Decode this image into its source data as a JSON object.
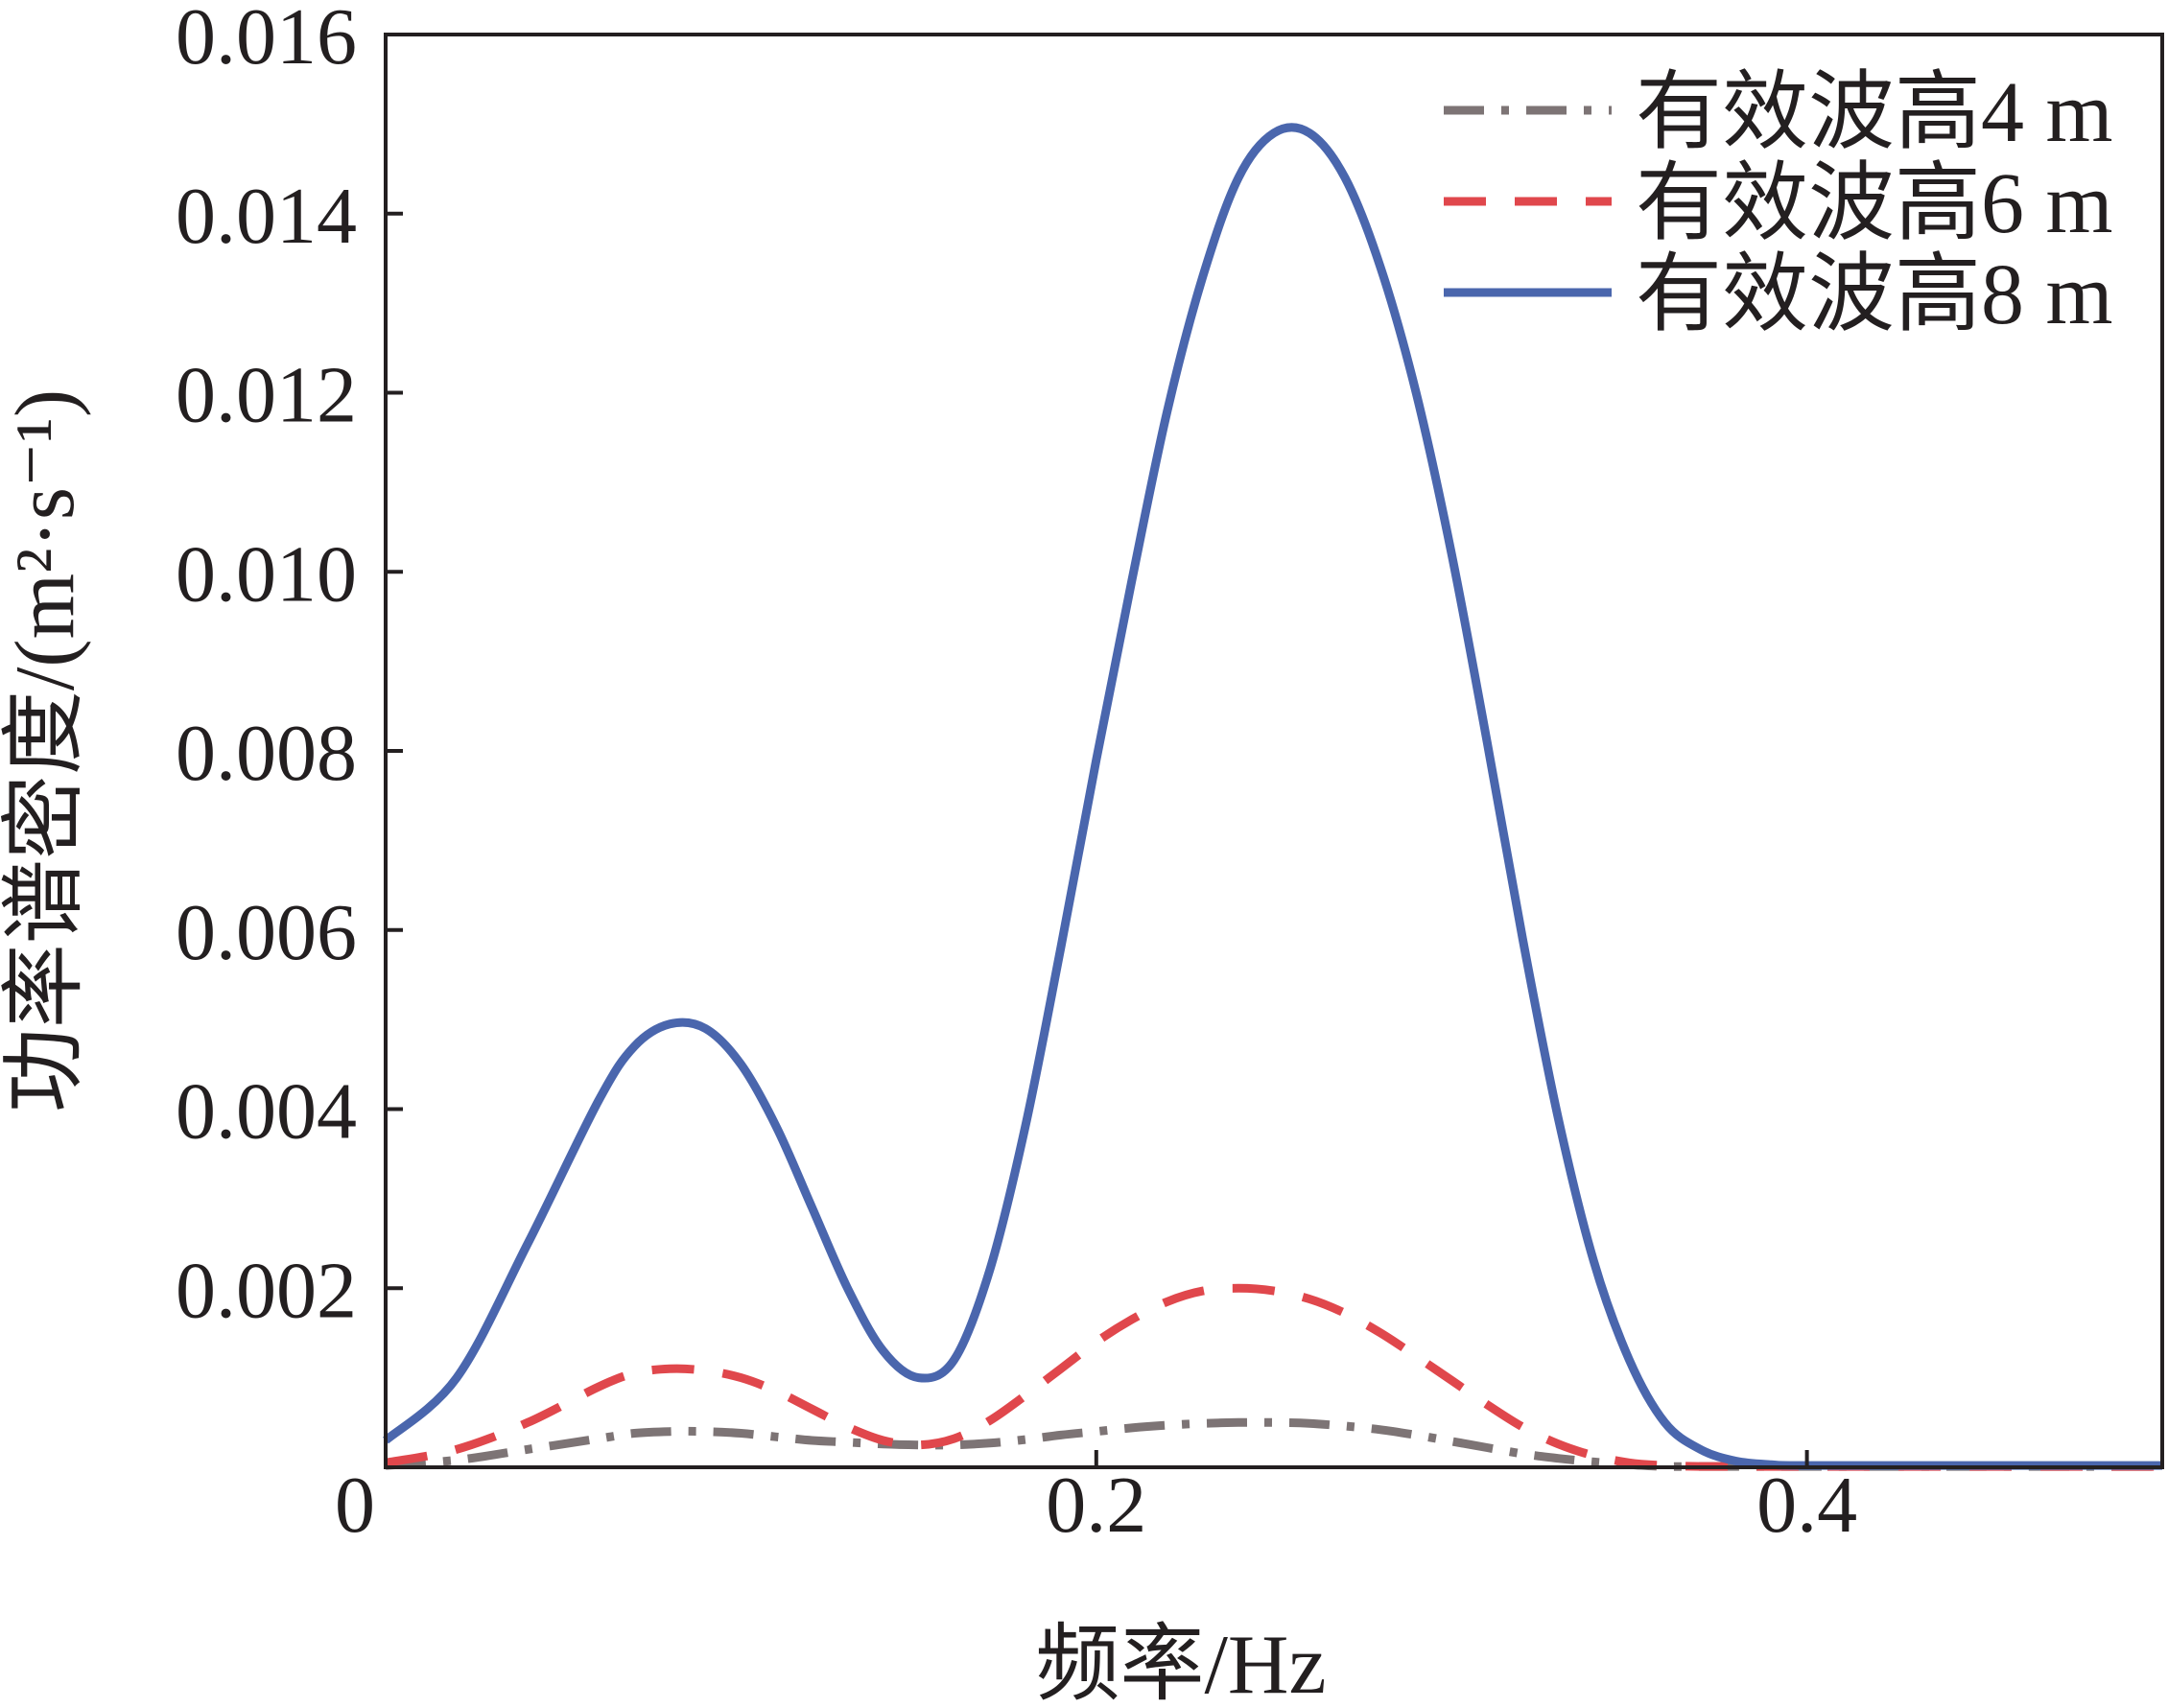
{
  "chart_data": {
    "type": "line",
    "title": "",
    "xlabel": "频率/Hz",
    "ylabel": "功率谱密度/(m²·s⁻¹)",
    "xlim": [
      0,
      0.5
    ],
    "ylim": [
      0,
      0.016
    ],
    "x_ticks": [
      0,
      0.2,
      0.4
    ],
    "x_tick_labels": [
      "0",
      "0.2",
      "0.4"
    ],
    "y_ticks": [
      0.002,
      0.004,
      0.006,
      0.008,
      0.01,
      0.012,
      0.014,
      0.016
    ],
    "y_tick_labels": [
      "0.002",
      "0.004",
      "0.006",
      "0.008",
      "0.010",
      "0.012",
      "0.014",
      "0.016"
    ],
    "grid": false,
    "legend_position": "top-right",
    "x": [
      0,
      0.02,
      0.04,
      0.06,
      0.07,
      0.08,
      0.09,
      0.1,
      0.11,
      0.12,
      0.13,
      0.14,
      0.15,
      0.16,
      0.17,
      0.18,
      0.19,
      0.2,
      0.21,
      0.22,
      0.23,
      0.24,
      0.25,
      0.26,
      0.27,
      0.28,
      0.29,
      0.3,
      0.31,
      0.32,
      0.33,
      0.34,
      0.35,
      0.36,
      0.37,
      0.38,
      0.39,
      0.4,
      0.45,
      0.5
    ],
    "series": [
      {
        "name": "有效波高4 m",
        "color": "#7d7475",
        "style": "dash-dot",
        "values": [
          2e-05,
          8e-05,
          0.0002,
          0.00032,
          0.00038,
          0.0004,
          0.0004,
          0.00038,
          0.00034,
          0.0003,
          0.00028,
          0.00026,
          0.00025,
          0.00025,
          0.00027,
          0.00031,
          0.00036,
          0.0004,
          0.00044,
          0.00047,
          0.00049,
          0.0005,
          0.0005,
          0.00049,
          0.00046,
          0.00042,
          0.00036,
          0.00029,
          0.00022,
          0.00015,
          0.0001,
          6e-05,
          3e-05,
          1e-05,
          1e-05,
          1e-05,
          1e-05,
          1e-05,
          1e-05,
          1e-05
        ]
      },
      {
        "name": "有效波高6 m",
        "color": "#e0474c",
        "style": "dashed",
        "values": [
          5e-05,
          0.0002,
          0.0005,
          0.0009,
          0.00105,
          0.0011,
          0.00108,
          0.001,
          0.00085,
          0.00065,
          0.00045,
          0.0003,
          0.00025,
          0.00032,
          0.00052,
          0.0008,
          0.0011,
          0.0014,
          0.00165,
          0.00185,
          0.00197,
          0.002,
          0.00197,
          0.00188,
          0.00172,
          0.0015,
          0.00124,
          0.00097,
          0.0007,
          0.00045,
          0.00026,
          0.00013,
          5e-05,
          2e-05,
          1e-05,
          1e-05,
          1e-05,
          1e-05,
          1e-05,
          1e-05
        ]
      },
      {
        "name": "有效波高8 m",
        "color": "#4a66ad",
        "style": "solid",
        "values": [
          0.0003,
          0.001,
          0.0025,
          0.0041,
          0.0047,
          0.00495,
          0.0049,
          0.0045,
          0.0038,
          0.0029,
          0.002,
          0.0013,
          0.001,
          0.0012,
          0.0022,
          0.0038,
          0.0058,
          0.0079,
          0.0099,
          0.0118,
          0.0133,
          0.0144,
          0.0149,
          0.0149,
          0.0144,
          0.0134,
          0.012,
          0.0102,
          0.0081,
          0.0059,
          0.0039,
          0.0023,
          0.0012,
          0.0005,
          0.0002,
          7e-05,
          3e-05,
          2e-05,
          2e-05,
          2e-05
        ]
      }
    ]
  }
}
